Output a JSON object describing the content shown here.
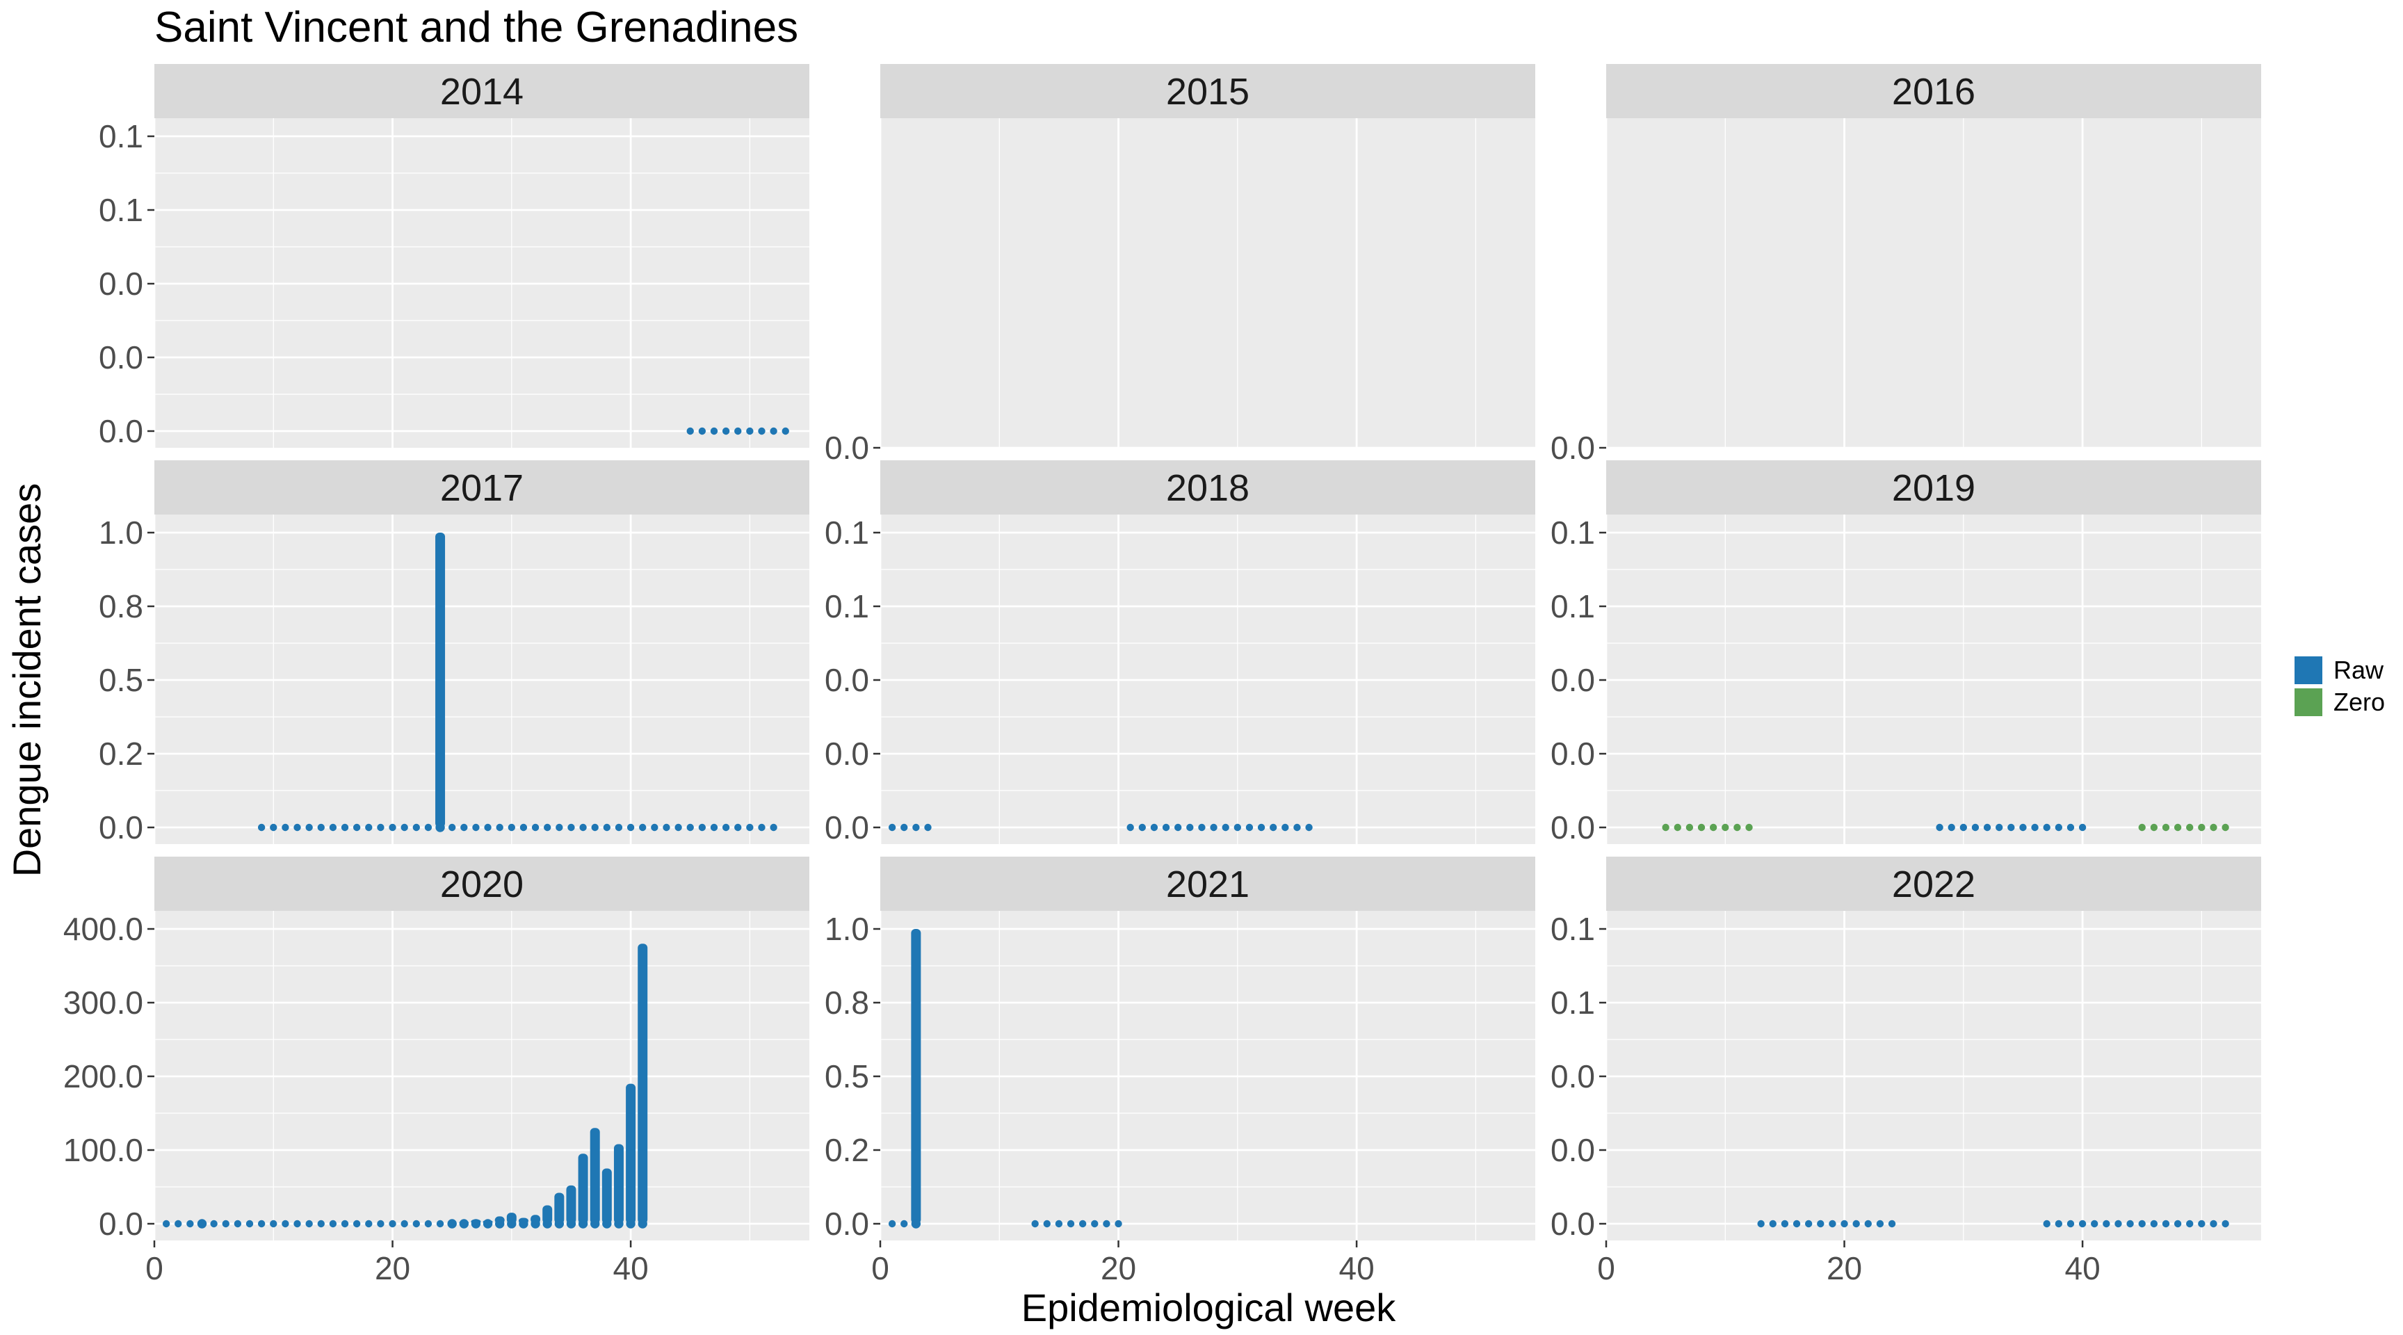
{
  "chart_data": {
    "type": "bar",
    "title": "Saint Vincent and the Grenadines",
    "xlabel": "Epidemiological week",
    "ylabel": "Dengue incident cases",
    "xlim": [
      0,
      55
    ],
    "x_ticks": [
      0,
      20,
      40
    ],
    "legend": {
      "position": "right",
      "entries": [
        {
          "name": "Raw",
          "color": "#1f77b4"
        },
        {
          "name": "Zero",
          "color": "#5ba253"
        }
      ]
    },
    "panels": [
      {
        "label": "2014",
        "ylim": [
          0,
          0.1
        ],
        "y_ticks": [
          0,
          0.025,
          0.05,
          0.075,
          0.1
        ],
        "y_tick_labels": [
          "0.0",
          "0.0",
          "0.0",
          "0.1",
          "0.1"
        ],
        "series": [
          {
            "name": "Raw",
            "points": [
              [
                45,
                0
              ],
              [
                46,
                0
              ],
              [
                47,
                0
              ],
              [
                48,
                0
              ],
              [
                49,
                0
              ],
              [
                50,
                0
              ],
              [
                51,
                0
              ],
              [
                52,
                0
              ],
              [
                53,
                0
              ]
            ]
          }
        ]
      },
      {
        "label": "2015",
        "ylim": [
          0,
          1
        ],
        "y_ticks": [
          0
        ],
        "y_tick_labels": [
          "0.0"
        ],
        "series": []
      },
      {
        "label": "2016",
        "ylim": [
          0,
          1
        ],
        "y_ticks": [
          0
        ],
        "y_tick_labels": [
          "0.0"
        ],
        "series": []
      },
      {
        "label": "2017",
        "ylim": [
          0,
          1
        ],
        "y_ticks": [
          0,
          0.25,
          0.5,
          0.75,
          1
        ],
        "y_tick_labels": [
          "0.0",
          "0.2",
          "0.5",
          "0.8",
          "1.0"
        ],
        "series": [
          {
            "name": "Raw",
            "points": [
              [
                9,
                0
              ],
              [
                10,
                0
              ],
              [
                11,
                0
              ],
              [
                12,
                0
              ],
              [
                13,
                0
              ],
              [
                14,
                0
              ],
              [
                15,
                0
              ],
              [
                16,
                0
              ],
              [
                17,
                0
              ],
              [
                18,
                0
              ],
              [
                19,
                0
              ],
              [
                20,
                0
              ],
              [
                21,
                0
              ],
              [
                22,
                0
              ],
              [
                23,
                0
              ],
              [
                24,
                1
              ],
              [
                25,
                0
              ],
              [
                26,
                0
              ],
              [
                27,
                0
              ],
              [
                28,
                0
              ],
              [
                29,
                0
              ],
              [
                30,
                0
              ],
              [
                31,
                0
              ],
              [
                32,
                0
              ],
              [
                33,
                0
              ],
              [
                34,
                0
              ],
              [
                35,
                0
              ],
              [
                36,
                0
              ],
              [
                37,
                0
              ],
              [
                38,
                0
              ],
              [
                39,
                0
              ],
              [
                40,
                0
              ],
              [
                41,
                0
              ],
              [
                42,
                0
              ],
              [
                43,
                0
              ],
              [
                44,
                0
              ],
              [
                45,
                0
              ],
              [
                46,
                0
              ],
              [
                47,
                0
              ],
              [
                48,
                0
              ],
              [
                49,
                0
              ],
              [
                50,
                0
              ],
              [
                51,
                0
              ],
              [
                52,
                0
              ]
            ]
          }
        ]
      },
      {
        "label": "2018",
        "ylim": [
          0,
          0.1
        ],
        "y_ticks": [
          0,
          0.025,
          0.05,
          0.075,
          0.1
        ],
        "y_tick_labels": [
          "0.0",
          "0.0",
          "0.0",
          "0.1",
          "0.1"
        ],
        "series": [
          {
            "name": "Raw",
            "points": [
              [
                1,
                0
              ],
              [
                2,
                0
              ],
              [
                3,
                0
              ],
              [
                4,
                0
              ],
              [
                21,
                0
              ],
              [
                22,
                0
              ],
              [
                23,
                0
              ],
              [
                24,
                0
              ],
              [
                25,
                0
              ],
              [
                26,
                0
              ],
              [
                27,
                0
              ],
              [
                28,
                0
              ],
              [
                29,
                0
              ],
              [
                30,
                0
              ],
              [
                31,
                0
              ],
              [
                32,
                0
              ],
              [
                33,
                0
              ],
              [
                34,
                0
              ],
              [
                35,
                0
              ],
              [
                36,
                0
              ]
            ]
          }
        ]
      },
      {
        "label": "2019",
        "ylim": [
          0,
          0.1
        ],
        "y_ticks": [
          0,
          0.025,
          0.05,
          0.075,
          0.1
        ],
        "y_tick_labels": [
          "0.0",
          "0.0",
          "0.0",
          "0.1",
          "0.1"
        ],
        "series": [
          {
            "name": "Zero",
            "points": [
              [
                5,
                0
              ],
              [
                6,
                0
              ],
              [
                7,
                0
              ],
              [
                8,
                0
              ],
              [
                9,
                0
              ],
              [
                10,
                0
              ],
              [
                11,
                0
              ],
              [
                12,
                0
              ],
              [
                45,
                0
              ],
              [
                46,
                0
              ],
              [
                47,
                0
              ],
              [
                48,
                0
              ],
              [
                49,
                0
              ],
              [
                50,
                0
              ],
              [
                51,
                0
              ],
              [
                52,
                0
              ]
            ]
          },
          {
            "name": "Raw",
            "points": [
              [
                28,
                0
              ],
              [
                29,
                0
              ],
              [
                30,
                0
              ],
              [
                31,
                0
              ],
              [
                32,
                0
              ],
              [
                33,
                0
              ],
              [
                34,
                0
              ],
              [
                35,
                0
              ],
              [
                36,
                0
              ],
              [
                37,
                0
              ],
              [
                38,
                0
              ],
              [
                39,
                0
              ],
              [
                40,
                0
              ]
            ]
          }
        ]
      },
      {
        "label": "2020",
        "ylim": [
          0,
          400
        ],
        "y_ticks": [
          0,
          100,
          200,
          300,
          400
        ],
        "y_tick_labels": [
          "0.0",
          "100.0",
          "200.0",
          "300.0",
          "400.0"
        ],
        "series": [
          {
            "name": "Raw",
            "points": [
              [
                1,
                0
              ],
              [
                2,
                0
              ],
              [
                3,
                0
              ],
              [
                4,
                1
              ],
              [
                5,
                0
              ],
              [
                6,
                0
              ],
              [
                7,
                0
              ],
              [
                8,
                0
              ],
              [
                9,
                0
              ],
              [
                10,
                0
              ],
              [
                11,
                0
              ],
              [
                12,
                0
              ],
              [
                13,
                0
              ],
              [
                14,
                0
              ],
              [
                15,
                0
              ],
              [
                16,
                0
              ],
              [
                17,
                0
              ],
              [
                18,
                0
              ],
              [
                19,
                0
              ],
              [
                20,
                0
              ],
              [
                21,
                0
              ],
              [
                22,
                0
              ],
              [
                23,
                0
              ],
              [
                24,
                0
              ],
              [
                25,
                1
              ],
              [
                26,
                3
              ],
              [
                27,
                6
              ],
              [
                28,
                5
              ],
              [
                29,
                10
              ],
              [
                30,
                15
              ],
              [
                31,
                8
              ],
              [
                32,
                12
              ],
              [
                33,
                25
              ],
              [
                34,
                42
              ],
              [
                35,
                52
              ],
              [
                36,
                95
              ],
              [
                37,
                130
              ],
              [
                38,
                75
              ],
              [
                39,
                108
              ],
              [
                40,
                190
              ],
              [
                41,
                380
              ]
            ]
          }
        ]
      },
      {
        "label": "2021",
        "ylim": [
          0,
          1
        ],
        "y_ticks": [
          0,
          0.25,
          0.5,
          0.75,
          1
        ],
        "y_tick_labels": [
          "0.0",
          "0.2",
          "0.5",
          "0.8",
          "1.0"
        ],
        "series": [
          {
            "name": "Raw",
            "points": [
              [
                1,
                0
              ],
              [
                2,
                0
              ],
              [
                3,
                1
              ],
              [
                13,
                0
              ],
              [
                14,
                0
              ],
              [
                15,
                0
              ],
              [
                16,
                0
              ],
              [
                17,
                0
              ],
              [
                18,
                0
              ],
              [
                19,
                0
              ],
              [
                20,
                0
              ]
            ]
          }
        ]
      },
      {
        "label": "2022",
        "ylim": [
          0,
          0.1
        ],
        "y_ticks": [
          0,
          0.025,
          0.05,
          0.075,
          0.1
        ],
        "y_tick_labels": [
          "0.0",
          "0.0",
          "0.0",
          "0.1",
          "0.1"
        ],
        "series": [
          {
            "name": "Raw",
            "points": [
              [
                13,
                0
              ],
              [
                14,
                0
              ],
              [
                15,
                0
              ],
              [
                16,
                0
              ],
              [
                17,
                0
              ],
              [
                18,
                0
              ],
              [
                19,
                0
              ],
              [
                20,
                0
              ],
              [
                21,
                0
              ],
              [
                22,
                0
              ],
              [
                23,
                0
              ],
              [
                24,
                0
              ],
              [
                37,
                0
              ],
              [
                38,
                0
              ],
              [
                39,
                0
              ],
              [
                40,
                0
              ],
              [
                41,
                0
              ],
              [
                42,
                0
              ],
              [
                43,
                0
              ],
              [
                44,
                0
              ],
              [
                45,
                0
              ],
              [
                46,
                0
              ],
              [
                47,
                0
              ],
              [
                48,
                0
              ],
              [
                49,
                0
              ],
              [
                50,
                0
              ],
              [
                51,
                0
              ],
              [
                52,
                0
              ]
            ]
          }
        ]
      }
    ]
  }
}
